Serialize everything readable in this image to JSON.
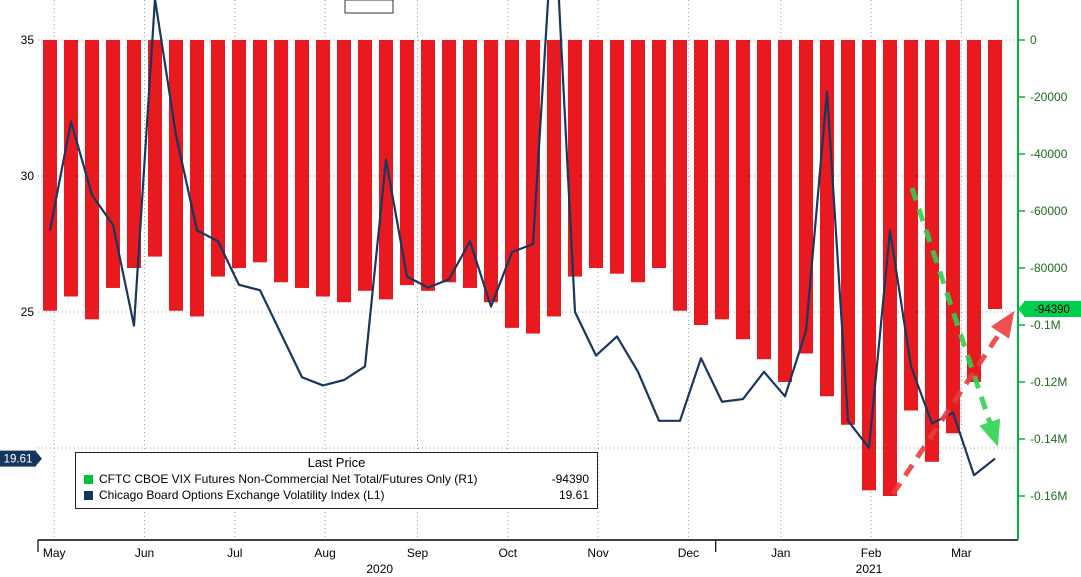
{
  "legend": {
    "title": "Last Price",
    "rows": [
      {
        "swatch_color": "#00c13b",
        "label": "CFTC CBOE VIX Futures Non-Commercial Net Total/Futures Only  (R1)",
        "value": "-94390"
      },
      {
        "swatch_color": "#14365c",
        "label": "Chicago Board Options Exchange Volatility Index  (L1)",
        "value": "19.61"
      }
    ]
  },
  "badges": {
    "right": {
      "text": "-94390",
      "bg": "#00cf4e",
      "fg": "#000000"
    },
    "left": {
      "text": "19.61",
      "bg": "#14365c",
      "fg": "#ffffff"
    }
  },
  "chart_data": {
    "type": "bar",
    "x_unit": "weekly (May 2020 - Mar 2021)",
    "grid": "dotted",
    "legend_position": "bottom-left box",
    "left_axis": {
      "tick_labels": [
        "35",
        "30",
        "25"
      ],
      "tick_values": [
        35,
        30,
        25
      ],
      "gridline_values": [
        35,
        30,
        25,
        20
      ],
      "range": [
        18.5,
        36.5
      ]
    },
    "right_axis": {
      "tick_labels": [
        "0",
        "-20000",
        "-40000",
        "-60000",
        "-80000",
        "-0.1M",
        "-0.12M",
        "-0.14M",
        "-0.16M"
      ],
      "tick_values": [
        0,
        -20000,
        -40000,
        -60000,
        -80000,
        -100000,
        -120000,
        -140000,
        -160000
      ],
      "range": [
        0,
        -175000
      ],
      "axis_color": "#00b43c",
      "label_color": "#1e6b1e"
    },
    "months": [
      {
        "label": "May",
        "week": 0.2
      },
      {
        "label": "Jun",
        "week": 4.5
      },
      {
        "label": "Jul",
        "week": 8.8
      },
      {
        "label": "Aug",
        "week": 13.1
      },
      {
        "label": "Sep",
        "week": 17.5
      },
      {
        "label": "Oct",
        "week": 21.8
      },
      {
        "label": "Nov",
        "week": 26.1
      },
      {
        "label": "Dec",
        "week": 30.4
      },
      {
        "label": "Jan",
        "week": 34.8
      },
      {
        "label": "Feb",
        "week": 39.1
      },
      {
        "label": "Mar",
        "week": 43.4
      }
    ],
    "years": [
      {
        "label": "2020",
        "week": 15.7
      },
      {
        "label": "2021",
        "week": 39.0
      }
    ],
    "year_separator_weeks": [
      31.7
    ],
    "series": [
      {
        "name": "CFTC CBOE VIX Futures Non-Commercial Net Total/Futures Only (R1)",
        "type": "bar",
        "axis": "right",
        "color": "#e8191f",
        "last_value": -94390,
        "values": [
          -95000,
          -90000,
          -98000,
          -87000,
          -80000,
          -76000,
          -95000,
          -97000,
          -83000,
          -80000,
          -78000,
          -85000,
          -87000,
          -90000,
          -92000,
          -88000,
          -91000,
          -86000,
          -88000,
          -85000,
          -87000,
          -92000,
          -101000,
          -103000,
          -97000,
          -83000,
          -80000,
          -82000,
          -85000,
          -80000,
          -95000,
          -100000,
          -98000,
          -105000,
          -112000,
          -120000,
          -110000,
          -125000,
          -135000,
          -158000,
          -160000,
          -130000,
          -148000,
          -138000,
          -120000,
          -94390
        ]
      },
      {
        "name": "Chicago Board Options Exchange Volatility Index (L1)",
        "type": "line",
        "axis": "left",
        "color": "#17375e",
        "last_value": 19.61,
        "values": [
          28.0,
          32.0,
          29.3,
          28.2,
          24.5,
          36.5,
          31.5,
          28.0,
          27.6,
          26.0,
          25.8,
          24.2,
          22.6,
          22.3,
          22.5,
          23.0,
          30.6,
          26.3,
          25.9,
          26.2,
          27.6,
          25.2,
          27.2,
          27.5,
          40.0,
          25.0,
          23.4,
          24.1,
          22.8,
          21.0,
          21.0,
          23.3,
          21.7,
          21.8,
          22.8,
          21.9,
          24.3,
          33.1,
          21.0,
          20.0,
          28.0,
          23.0,
          20.9,
          21.3,
          19.0,
          19.61
        ]
      }
    ],
    "annotations": [
      {
        "name": "green-dashed-arrow",
        "color": "#2fd24f",
        "from": [
          912,
          188
        ],
        "to": [
          996,
          441
        ]
      },
      {
        "name": "red-dashed-arrow",
        "color": "#ea3e3e",
        "from": [
          893,
          494
        ],
        "to": [
          1011,
          316
        ]
      }
    ]
  }
}
